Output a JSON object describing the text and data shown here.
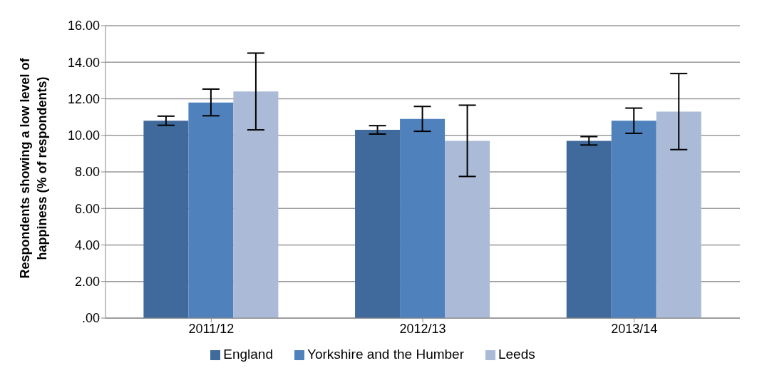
{
  "chart_data": {
    "type": "bar",
    "ylabel": "Respondents showing a low level of happiness (% of respondents)",
    "categories": [
      "2011/12",
      "2012/13",
      "2013/14"
    ],
    "series": [
      {
        "name": "England",
        "color": "#3f6a9b",
        "values": [
          10.8,
          10.3,
          9.7
        ],
        "errors": [
          0.25,
          0.23,
          0.23
        ]
      },
      {
        "name": "Yorkshire and the Humber",
        "color": "#4f81bd",
        "values": [
          11.8,
          10.9,
          10.8
        ],
        "errors": [
          0.73,
          0.68,
          0.69
        ]
      },
      {
        "name": "Leeds",
        "color": "#aabad7",
        "values": [
          12.4,
          9.7,
          11.3
        ],
        "errors": [
          2.1,
          1.95,
          2.08
        ]
      }
    ],
    "ylim": [
      0,
      16
    ],
    "yticks": [
      {
        "value": 0,
        "label": ".00"
      },
      {
        "value": 2,
        "label": "2.00"
      },
      {
        "value": 4,
        "label": "4.00"
      },
      {
        "value": 6,
        "label": "6.00"
      },
      {
        "value": 8,
        "label": "8.00"
      },
      {
        "value": 10,
        "label": "10.00"
      },
      {
        "value": 12,
        "label": "12.00"
      },
      {
        "value": 14,
        "label": "14.00"
      },
      {
        "value": 16,
        "label": "16.00"
      }
    ],
    "grid": "y",
    "legend": "bottom"
  }
}
